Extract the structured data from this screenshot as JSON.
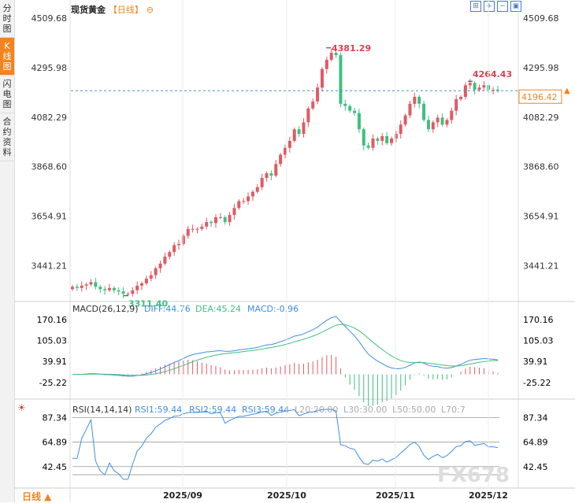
{
  "sidebar": {
    "items": [
      {
        "label": "分时图",
        "active": false
      },
      {
        "label": "K线图",
        "active": true
      },
      {
        "label": "闪电图",
        "active": false
      },
      {
        "label": "合约资料",
        "active": false
      }
    ]
  },
  "header": {
    "title": "现货黄金",
    "period": "【日线】",
    "collapse": "⊖"
  },
  "toolbar": {
    "icons": [
      "expand-icon",
      "zoom-in-icon",
      "zoom-out-icon",
      "reset-icon"
    ]
  },
  "footer": {
    "period_label": "日线 ▲"
  },
  "watermark": "FX678",
  "chart_data": [
    {
      "type": "candlestick",
      "title": "现货黄金",
      "y_ticks": [
        "4509.68",
        "4295.98",
        "4082.29",
        "3868.60",
        "3654.91",
        "3441.21"
      ],
      "ylim": [
        3290,
        4520
      ],
      "x_ticks": [
        "2025/09",
        "2025/10",
        "2025/11",
        "2025/12"
      ],
      "annotations": {
        "high": "4381.29",
        "low": "3311.40",
        "recent_high": "4264.43"
      },
      "last_price": "4196.42",
      "closes": [
        3350,
        3345,
        3355,
        3360,
        3370,
        3350,
        3340,
        3335,
        3345,
        3335,
        3330,
        3320,
        3320,
        3335,
        3355,
        3365,
        3385,
        3400,
        3430,
        3450,
        3480,
        3500,
        3530,
        3535,
        3570,
        3600,
        3600,
        3600,
        3610,
        3630,
        3625,
        3650,
        3650,
        3630,
        3660,
        3690,
        3720,
        3720,
        3740,
        3760,
        3780,
        3820,
        3840,
        3830,
        3880,
        3920,
        3950,
        3980,
        4030,
        4010,
        4060,
        4120,
        4150,
        4210,
        4290,
        4330,
        4360,
        4350,
        4140,
        4130,
        4110,
        4100,
        4030,
        3960,
        3950,
        3990,
        3980,
        4000,
        3970,
        3990,
        4010,
        4050,
        4090,
        4140,
        4170,
        4140,
        4070,
        4030,
        4060,
        4080,
        4050,
        4070,
        4110,
        4160,
        4170,
        4220,
        4230,
        4200,
        4210,
        4220,
        4200,
        4200,
        4196
      ],
      "macd": {
        "label": "MACD(26,12,9)",
        "diff_label": "DIFF:44.76",
        "dea_label": "DEA:45.24",
        "macd_label": "MACD:-0.96",
        "y_ticks": [
          "170.16",
          "105.03",
          "39.91",
          "-25.22"
        ]
      },
      "rsi": {
        "label": "RSI(14,14,14)",
        "rsi1_label": "RSI1:59.44",
        "rsi2_label": "RSI2:59.44",
        "rsi3_label": "RSI3:59.44",
        "l20": "L20:20.00",
        "l30": "L30:30.00",
        "l50": "L50:50.00",
        "l70": "L70:7",
        "y_ticks": [
          "87.34",
          "64.89",
          "42.45"
        ]
      }
    }
  ],
  "colors": {
    "up": "#e05a64",
    "down": "#3fbf7f",
    "accent": "#f2841f",
    "diff": "#3d8fe0",
    "dea": "#3fbf7f",
    "rsi": "#3d8fe0",
    "label_red": "#e04050"
  }
}
